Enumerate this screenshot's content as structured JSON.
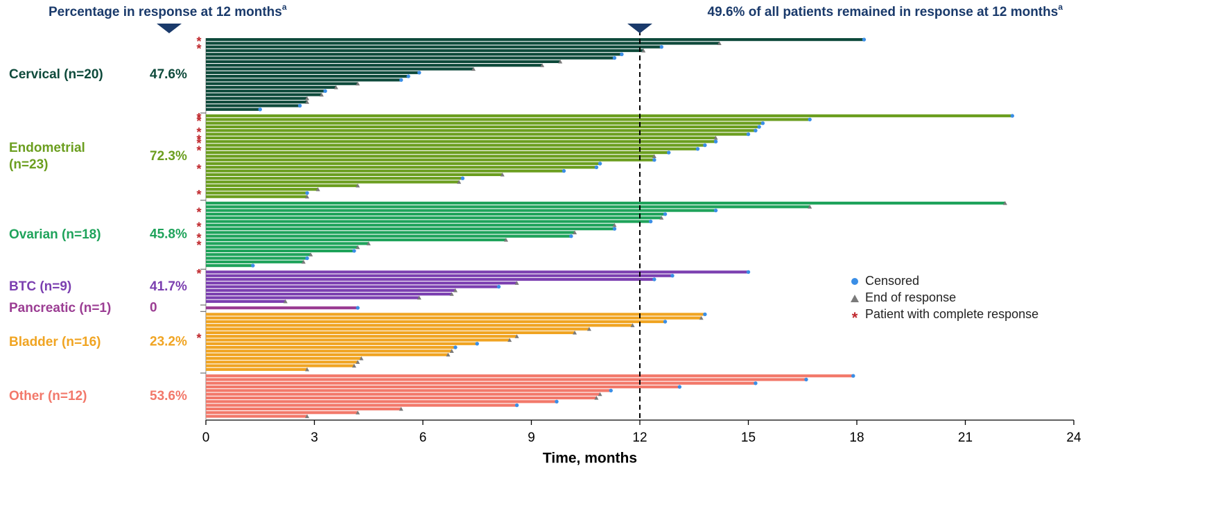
{
  "chart_data": {
    "type": "swimmer",
    "annotation_left": "Percentage in response at 12 months",
    "annotation_right": "49.6% of all patients remained in response at 12 months",
    "footnote_marker": "a",
    "reference_x": 12,
    "x_label": "Time, months",
    "xlim": [
      0,
      24
    ],
    "xticks": [
      0,
      3,
      6,
      9,
      12,
      15,
      18,
      21,
      24
    ],
    "censored_color": "#3a8ee6",
    "end_color": "#7a7a7a",
    "cr_color": "#c0282d",
    "legend": [
      "Censored",
      "End of response",
      "Patient with complete response"
    ],
    "series": [
      {
        "name": "Cervical (n=20)",
        "rate": "47.6%",
        "color": "#0e4a3b",
        "wrap": false,
        "values": [
          18.2,
          14.2,
          12.6,
          12.1,
          11.5,
          11.3,
          9.8,
          9.3,
          7.4,
          5.9,
          5.6,
          5.4,
          4.2,
          3.6,
          3.3,
          3.2,
          2.8,
          2.8,
          2.6,
          1.5
        ],
        "censored": [
          true,
          false,
          true,
          false,
          true,
          true,
          false,
          false,
          false,
          true,
          true,
          true,
          false,
          false,
          true,
          false,
          false,
          false,
          true,
          true
        ],
        "complete_response": [
          true,
          false,
          true,
          false,
          false,
          false,
          false,
          false,
          false,
          false,
          false,
          false,
          false,
          false,
          false,
          false,
          false,
          false,
          false,
          false
        ]
      },
      {
        "name": "Endometrial (n=23)",
        "rate": "72.3%",
        "color": "#6b9e1f",
        "wrap": true,
        "values": [
          22.3,
          16.7,
          15.4,
          15.3,
          15.2,
          15.0,
          14.1,
          14.1,
          13.8,
          13.6,
          12.8,
          12.4,
          12.4,
          10.9,
          10.8,
          9.9,
          8.2,
          7.1,
          7.0,
          4.2,
          3.1,
          2.8,
          2.8
        ],
        "censored": [
          true,
          true,
          true,
          true,
          true,
          true,
          false,
          true,
          true,
          true,
          true,
          false,
          true,
          true,
          true,
          true,
          false,
          true,
          false,
          false,
          false,
          true,
          false
        ],
        "complete_response": [
          true,
          true,
          false,
          false,
          true,
          false,
          true,
          true,
          false,
          true,
          false,
          false,
          false,
          false,
          true,
          false,
          false,
          false,
          false,
          false,
          false,
          true,
          false
        ]
      },
      {
        "name": "Ovarian (n=18)",
        "rate": "45.8%",
        "color": "#1fa35b",
        "wrap": false,
        "values": [
          22.1,
          16.7,
          14.1,
          12.7,
          12.6,
          12.3,
          11.3,
          11.3,
          10.2,
          10.1,
          8.3,
          4.5,
          4.2,
          4.1,
          2.9,
          2.8,
          2.7,
          1.3
        ],
        "censored": [
          false,
          false,
          true,
          true,
          false,
          true,
          false,
          true,
          false,
          true,
          false,
          false,
          false,
          true,
          false,
          true,
          false,
          true
        ],
        "complete_response": [
          false,
          false,
          true,
          false,
          false,
          false,
          true,
          false,
          false,
          true,
          false,
          true,
          false,
          false,
          false,
          false,
          false,
          false
        ]
      },
      {
        "name": "BTC (n=9)",
        "rate": "41.7%",
        "color": "#7b3fb0",
        "wrap": false,
        "values": [
          15.0,
          12.9,
          12.4,
          8.6,
          8.1,
          6.9,
          6.8,
          5.9,
          2.2
        ],
        "censored": [
          true,
          true,
          true,
          false,
          true,
          false,
          false,
          false,
          false
        ],
        "complete_response": [
          true,
          false,
          false,
          false,
          false,
          false,
          false,
          false,
          false
        ]
      },
      {
        "name": "Pancreatic (n=1)",
        "rate": "0",
        "color": "#9b3d93",
        "wrap": false,
        "values": [
          4.2
        ],
        "censored": [
          true
        ],
        "complete_response": [
          false
        ]
      },
      {
        "name": "Bladder (n=16)",
        "rate": "23.2%",
        "color": "#f0a422",
        "wrap": false,
        "values": [
          13.8,
          13.7,
          12.7,
          11.8,
          10.6,
          10.2,
          8.6,
          8.4,
          7.5,
          6.9,
          6.8,
          6.7,
          4.3,
          4.2,
          4.1,
          2.8
        ],
        "censored": [
          true,
          false,
          true,
          false,
          false,
          false,
          false,
          false,
          true,
          true,
          false,
          false,
          false,
          false,
          false,
          false
        ],
        "complete_response": [
          false,
          false,
          false,
          false,
          false,
          false,
          true,
          false,
          false,
          false,
          false,
          false,
          false,
          false,
          false,
          false
        ]
      },
      {
        "name": "Other (n=12)",
        "rate": "53.6%",
        "color": "#f2786a",
        "wrap": false,
        "values": [
          17.9,
          16.6,
          15.2,
          13.1,
          11.2,
          10.9,
          10.8,
          9.7,
          8.6,
          5.4,
          4.2,
          2.8
        ],
        "censored": [
          true,
          true,
          true,
          true,
          true,
          false,
          false,
          true,
          true,
          false,
          false,
          false
        ],
        "complete_response": [
          false,
          false,
          false,
          false,
          false,
          false,
          false,
          false,
          false,
          false,
          false,
          false
        ]
      }
    ]
  }
}
